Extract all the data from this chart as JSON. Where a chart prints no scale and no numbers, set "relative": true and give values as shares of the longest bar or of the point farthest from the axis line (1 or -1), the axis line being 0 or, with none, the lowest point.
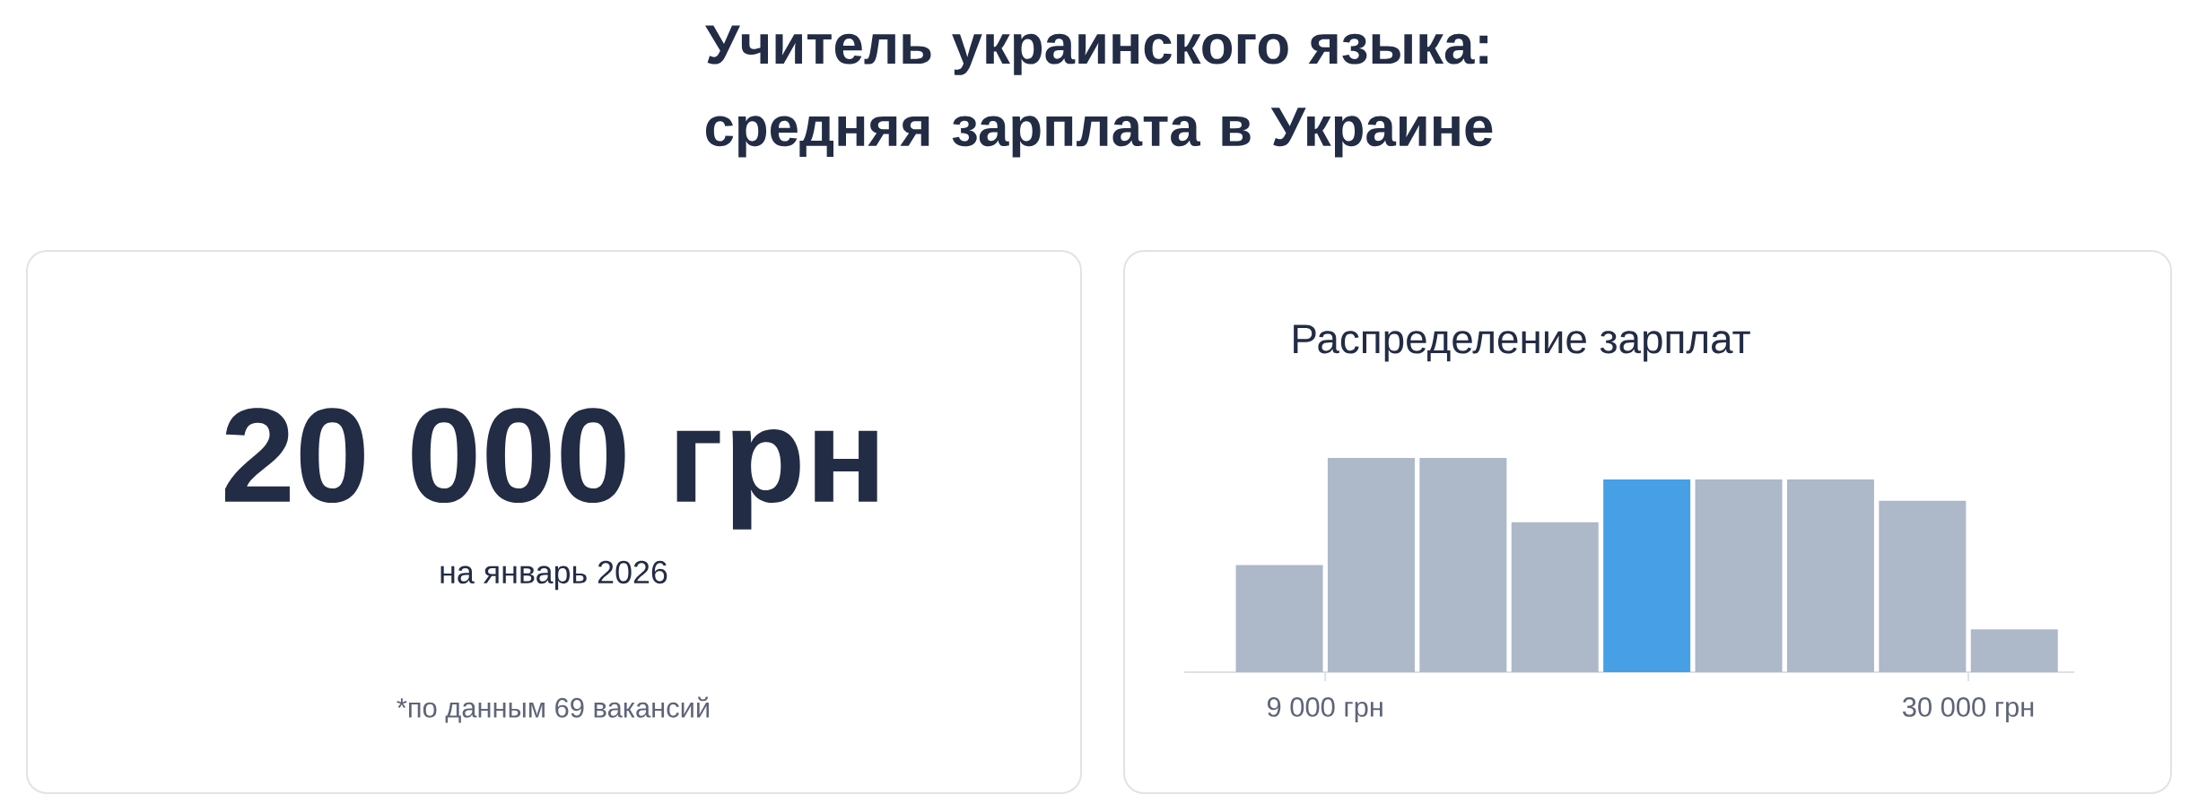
{
  "chart_data": [
    {
      "type": "other",
      "title": "Учитель украинского языка: средняя зарплата в Украине",
      "annotations": [
        "20 000 грн",
        "на январь 2026",
        "*по данным 69 вакансий"
      ]
    },
    {
      "type": "bar",
      "title": "Распределение зарплат",
      "relative": true,
      "categories": [
        null,
        null,
        null,
        null,
        null,
        null,
        null,
        null,
        null
      ],
      "values": [
        0.5,
        1,
        1,
        0.7,
        0.9,
        0.9,
        0.9,
        0.8,
        0.2
      ],
      "colors": [
        "#adb8c9",
        "#adb8c9",
        "#adb8c9",
        "#adb8c9",
        "#479fe6",
        "#adb8c9",
        "#adb8c9",
        "#adb8c9",
        "#adb8c9"
      ],
      "annotations": [
        "9 000 грн",
        "30 000 грн"
      ]
    }
  ]
}
